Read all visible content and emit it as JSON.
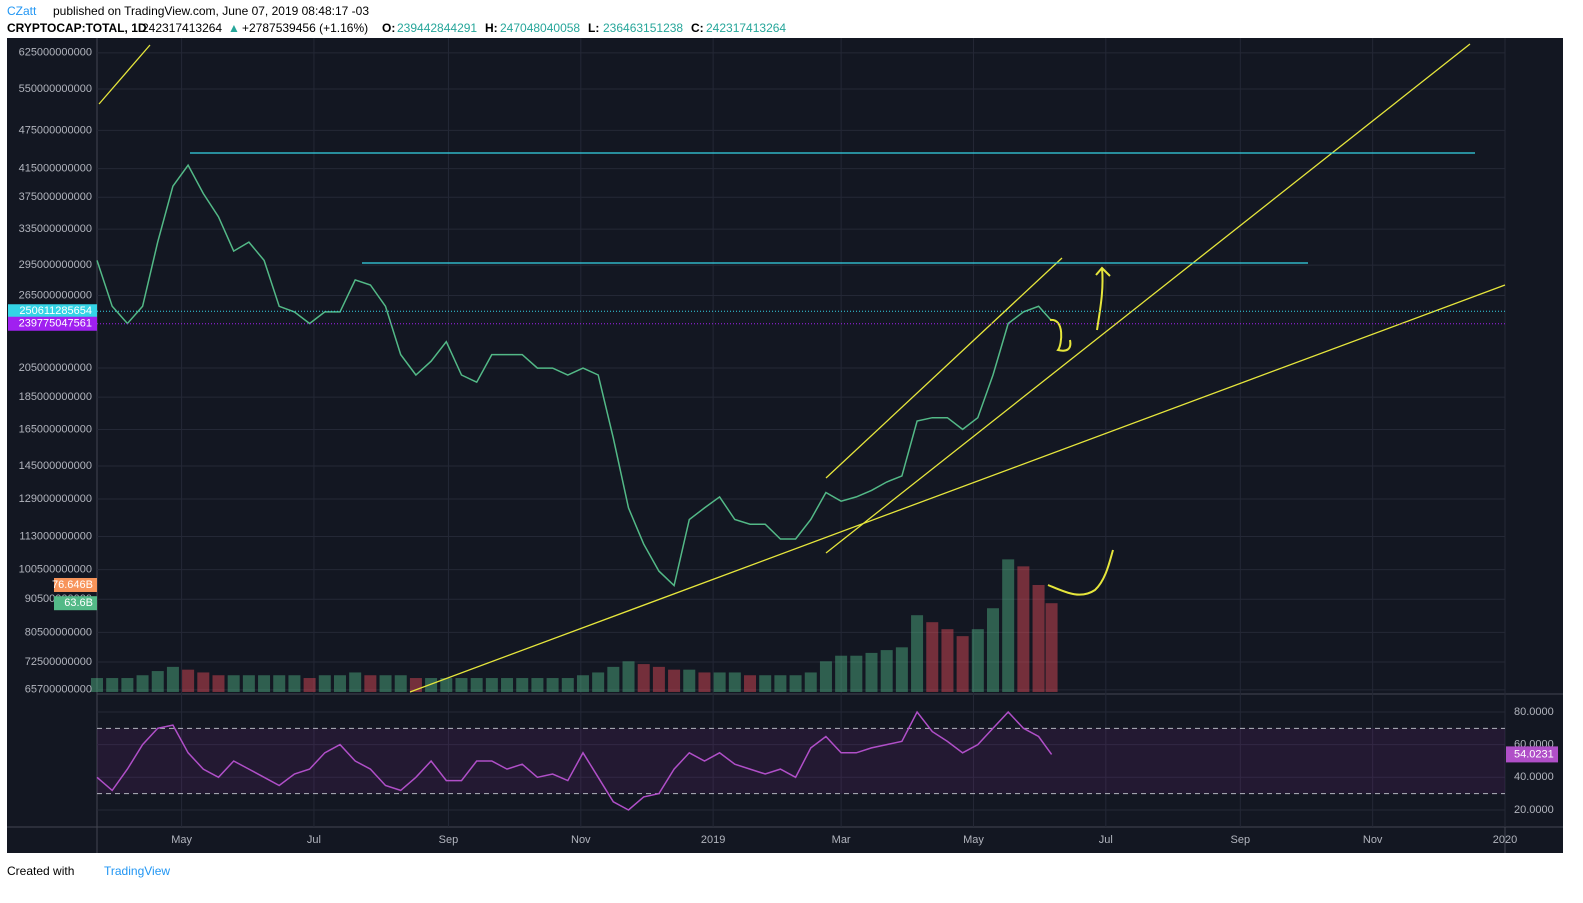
{
  "header": {
    "author": "CZatt",
    "published": "published on TradingView.com, June 07, 2019 08:48:17 -03",
    "symbol": "CRYPTOCAP:TOTAL, 1D",
    "last": "242317413264",
    "arrow": "▲",
    "change": "+2787539456 (+1.16%)",
    "ohlc": [
      {
        "label": "O:",
        "value": "239442844291"
      },
      {
        "label": "H:",
        "value": "247048040058"
      },
      {
        "label": "L:",
        "value": "236463151238"
      },
      {
        "label": "C:",
        "value": "242317413264"
      }
    ]
  },
  "footer": {
    "created": "Created with",
    "brand": "TradingView"
  },
  "chart_data": {
    "type": "line",
    "log_scale": true,
    "grid": true,
    "color": "#53b987",
    "x": [
      "2018-03-23",
      "2018-03-30",
      "2018-04-06",
      "2018-04-13",
      "2018-04-20",
      "2018-04-27",
      "2018-05-04",
      "2018-05-11",
      "2018-05-18",
      "2018-05-25",
      "2018-06-01",
      "2018-06-08",
      "2018-06-15",
      "2018-06-22",
      "2018-06-29",
      "2018-07-06",
      "2018-07-13",
      "2018-07-20",
      "2018-07-27",
      "2018-08-03",
      "2018-08-10",
      "2018-08-17",
      "2018-08-24",
      "2018-08-31",
      "2018-09-07",
      "2018-09-14",
      "2018-09-21",
      "2018-09-28",
      "2018-10-05",
      "2018-10-12",
      "2018-10-19",
      "2018-10-26",
      "2018-11-02",
      "2018-11-09",
      "2018-11-16",
      "2018-11-23",
      "2018-11-30",
      "2018-12-07",
      "2018-12-14",
      "2018-12-21",
      "2018-12-28",
      "2019-01-04",
      "2019-01-11",
      "2019-01-18",
      "2019-01-25",
      "2019-02-01",
      "2019-02-08",
      "2019-02-15",
      "2019-02-22",
      "2019-03-01",
      "2019-03-08",
      "2019-03-15",
      "2019-03-22",
      "2019-03-29",
      "2019-04-05",
      "2019-04-12",
      "2019-04-19",
      "2019-04-26",
      "2019-05-03",
      "2019-05-10",
      "2019-05-17",
      "2019-05-24",
      "2019-05-31",
      "2019-06-06"
    ],
    "series": [
      {
        "name": "TOTAL",
        "color": "#53b987",
        "values": [
          300000000000,
          255000000000,
          240000000000,
          255000000000,
          320000000000,
          390000000000,
          420000000000,
          380000000000,
          350000000000,
          310000000000,
          320000000000,
          300000000000,
          255000000000,
          250000000000,
          240000000000,
          250000000000,
          250000000000,
          280000000000,
          275000000000,
          255000000000,
          215000000000,
          200000000000,
          210000000000,
          225000000000,
          200000000000,
          195000000000,
          215000000000,
          215000000000,
          215000000000,
          205000000000,
          205000000000,
          200000000000,
          205000000000,
          200000000000,
          160000000000,
          125000000000,
          110000000000,
          100000000000,
          95000000000,
          120000000000,
          125000000000,
          130000000000,
          120000000000,
          118000000000,
          118000000000,
          112000000000,
          112000000000,
          120000000000,
          132000000000,
          128000000000,
          130000000000,
          133000000000,
          137000000000,
          140000000000,
          170000000000,
          172000000000,
          172000000000,
          165000000000,
          172000000000,
          200000000000,
          240000000000,
          250000000000,
          255000000000,
          242317413264
        ]
      },
      {
        "name": "Volume",
        "axis": "y2",
        "color": "#26a69a",
        "values": [
          10000000000,
          10000000000,
          10000000000,
          12000000000,
          15000000000,
          18000000000,
          16000000000,
          14000000000,
          12000000000,
          12000000000,
          12000000000,
          12000000000,
          12000000000,
          12000000000,
          10000000000,
          12000000000,
          12000000000,
          14000000000,
          12000000000,
          12000000000,
          12000000000,
          10000000000,
          10000000000,
          10000000000,
          10000000000,
          10000000000,
          10000000000,
          10000000000,
          10000000000,
          10000000000,
          10000000000,
          10000000000,
          12000000000,
          14000000000,
          18000000000,
          22000000000,
          20000000000,
          18000000000,
          16000000000,
          16000000000,
          14000000000,
          14000000000,
          14000000000,
          12000000000,
          12000000000,
          12000000000,
          12000000000,
          14000000000,
          22000000000,
          26000000000,
          26000000000,
          28000000000,
          30000000000,
          32000000000,
          55000000000,
          50000000000,
          45000000000,
          40000000000,
          45000000000,
          60000000000,
          95000000000,
          90000000000,
          76646000000,
          63600000000
        ]
      },
      {
        "name": "RSI",
        "axis": "rsi",
        "color": "#b04fc8",
        "values": [
          40,
          32,
          45,
          60,
          70,
          72,
          55,
          45,
          40,
          50,
          45,
          40,
          35,
          42,
          45,
          55,
          60,
          50,
          45,
          35,
          32,
          40,
          50,
          38,
          38,
          50,
          50,
          45,
          48,
          40,
          42,
          38,
          55,
          40,
          25,
          20,
          28,
          30,
          45,
          55,
          50,
          55,
          48,
          45,
          42,
          45,
          40,
          58,
          65,
          55,
          55,
          58,
          60,
          62,
          80,
          68,
          62,
          55,
          60,
          70,
          80,
          70,
          65,
          54.0231
        ]
      }
    ],
    "xlim": [
      "2018-03-23",
      "2020-01-01"
    ],
    "xticks": [
      {
        "value": "2018-05-01",
        "label": "May"
      },
      {
        "value": "2018-07-01",
        "label": "Jul"
      },
      {
        "value": "2018-09-01",
        "label": "Sep"
      },
      {
        "value": "2018-11-01",
        "label": "Nov"
      },
      {
        "value": "2019-01-01",
        "label": "2019"
      },
      {
        "value": "2019-03-01",
        "label": "Mar"
      },
      {
        "value": "2019-05-01",
        "label": "May"
      },
      {
        "value": "2019-07-01",
        "label": "Jul"
      },
      {
        "value": "2019-09-01",
        "label": "Sep"
      },
      {
        "value": "2019-11-01",
        "label": "Nov"
      },
      {
        "value": "2020-01-01",
        "label": "2020"
      }
    ],
    "ylim": [
      65200000000,
      654000000000
    ],
    "yticks": [
      625000000000,
      550000000000,
      475000000000,
      415000000000,
      375000000000,
      335000000000,
      295000000000,
      265000000000,
      205000000000,
      185000000000,
      165000000000,
      145000000000,
      129000000000,
      113000000000,
      100500000000,
      90500000000,
      80500000000,
      72500000000,
      65700000000
    ],
    "y2lim": [
      0,
      467000000000
    ],
    "rsi_lim": [
      10.8,
      90.4
    ],
    "rsi_ticks": [
      {
        "value": 80,
        "label": "80.0000"
      },
      {
        "value": 60,
        "label": "60.0000"
      },
      {
        "value": 40,
        "label": "40.0000"
      },
      {
        "value": 20,
        "label": "20.0000"
      }
    ],
    "rsi_bands": [
      70,
      30
    ],
    "price_tags": [
      {
        "value": 250611285654,
        "color": "#34d4e6"
      },
      {
        "value": 239775047561,
        "color": "#a020f0"
      }
    ],
    "volume_tags": [
      {
        "value": 76646000000,
        "label": "76.646B",
        "color": "#f7945a"
      },
      {
        "value": 63600000000,
        "label": "63.6B",
        "color": "#53b987"
      }
    ]
  }
}
